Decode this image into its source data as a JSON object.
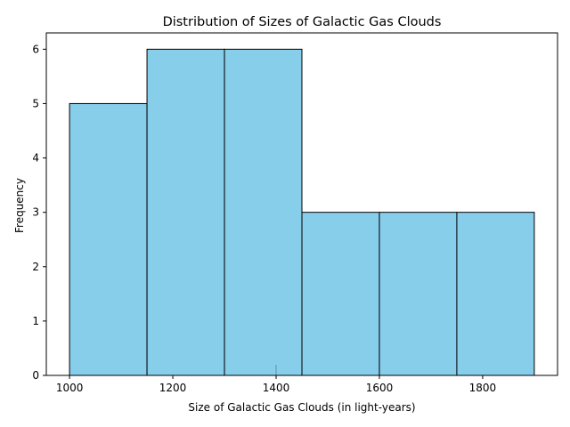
{
  "chart_data": {
    "type": "bar",
    "subtype": "histogram",
    "title": "Distribution of Sizes of Galactic Gas Clouds",
    "xlabel": "Size of Galactic Gas Clouds (in light-years)",
    "ylabel": "Frequency",
    "bins": [
      {
        "start": 1000,
        "end": 1150,
        "count": 5
      },
      {
        "start": 1150,
        "end": 1300,
        "count": 6
      },
      {
        "start": 1300,
        "end": 1450,
        "count": 6
      },
      {
        "start": 1450,
        "end": 1600,
        "count": 3
      },
      {
        "start": 1600,
        "end": 1750,
        "count": 3
      },
      {
        "start": 1750,
        "end": 1900,
        "count": 3
      }
    ],
    "xlim": [
      955,
      1945
    ],
    "ylim": [
      0,
      6.3
    ],
    "xticks": [
      "1000",
      "1200",
      "1400",
      "1600",
      "1800"
    ],
    "yticks": [
      "0",
      "1",
      "2",
      "3",
      "4",
      "5",
      "6"
    ],
    "grid": false,
    "bar_color": "#87ceeb",
    "edge_color": "#000000",
    "marker_x": 1400,
    "marker_color": "#6a8fa8"
  }
}
